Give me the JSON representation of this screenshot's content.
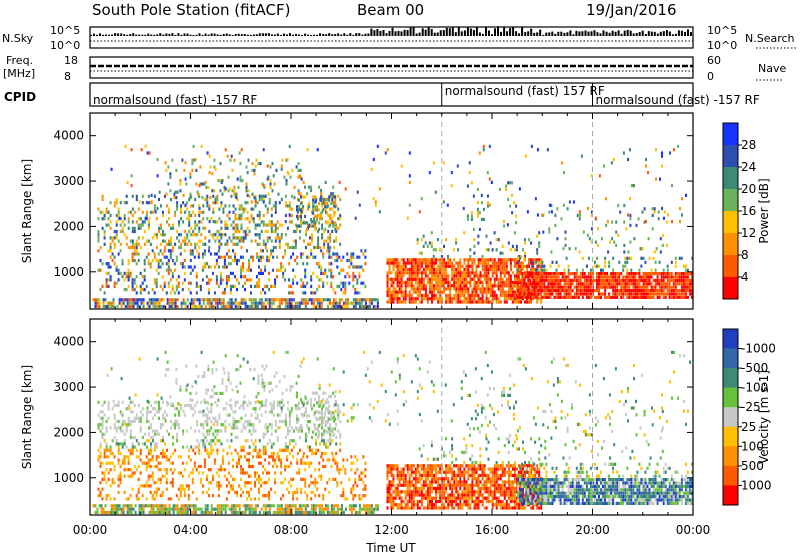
{
  "header": {
    "station": "South Pole Station (fitACF)",
    "beam": "Beam 00",
    "date": "19/Jan/2016"
  },
  "panels": {
    "nsky": {
      "label": "N.Sky",
      "ticks": [
        "10^5",
        "10^0"
      ]
    },
    "nsearch": {
      "label": "N.Search",
      "ticks": [
        "10^5",
        "10^0"
      ]
    },
    "freq": {
      "label_line1": "Freq.",
      "label_line2": "[MHz]",
      "ticks": [
        "18",
        "8"
      ]
    },
    "nave": {
      "label": "Nave",
      "ticks": [
        "60",
        "0"
      ]
    },
    "cpid": {
      "label": "CPID",
      "segments": [
        {
          "text": "normalsound (fast) -157 RF",
          "start_hour": 0
        },
        {
          "text": "normalsound (fast) 157 RF",
          "start_hour": 14
        },
        {
          "text": "normalsound (fast) -157 RF",
          "start_hour": 20
        }
      ]
    }
  },
  "chart_data": [
    {
      "type": "heatmap",
      "name": "power",
      "ylabel": "Slant Range [km]",
      "xlabel": "",
      "colorbar_label": "Power [dB]",
      "ylim": [
        180,
        4500
      ],
      "xlim_hours": [
        0,
        24
      ],
      "yticks": [
        1000,
        2000,
        3000,
        4000
      ],
      "colorbar_ticks": [
        "4",
        "8",
        "12",
        "16",
        "20",
        "24",
        "28"
      ],
      "colorbar_colors": [
        "#1733ff",
        "#2d4fb2",
        "#3c8a78",
        "#6ab25c",
        "#ffc000",
        "#ff9000",
        "#ff5a00",
        "#ff0000"
      ],
      "mode_change_hours": [
        14,
        20
      ]
    },
    {
      "type": "heatmap",
      "name": "velocity",
      "ylabel": "Slant Range [km]",
      "xlabel": "Time UT",
      "colorbar_label": "Velocity [m s-1]",
      "ylim": [
        180,
        4500
      ],
      "xlim_hours": [
        0,
        24
      ],
      "yticks": [
        1000,
        2000,
        3000,
        4000
      ],
      "xtick_labels": [
        "00:00",
        "04:00",
        "08:00",
        "12:00",
        "16:00",
        "20:00",
        "00:00"
      ],
      "colorbar_ticks": [
        "1000",
        "500",
        "100",
        "25",
        "-25",
        "-100",
        "-500",
        "-1000"
      ],
      "colorbar_colors": [
        "#1f3fbf",
        "#3366a8",
        "#3c8a78",
        "#66c23a",
        "#c8c8c8",
        "#ffc000",
        "#ff9000",
        "#ff5a00",
        "#ff0000"
      ],
      "mode_change_hours": [
        14,
        20
      ]
    }
  ]
}
